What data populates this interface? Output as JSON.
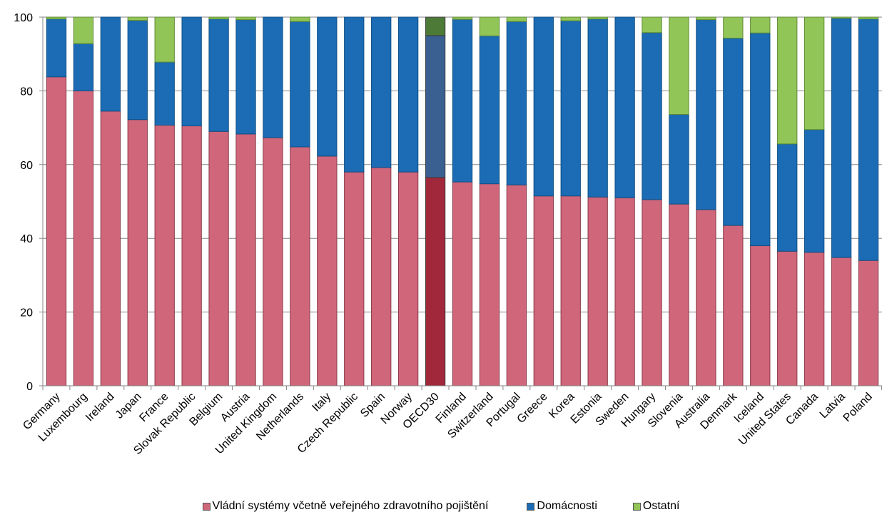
{
  "chart_data": {
    "type": "bar",
    "stacked": true,
    "highlight_category": "OECD30",
    "categories": [
      "Germany",
      "Luxembourg",
      "Ireland",
      "Japan",
      "France",
      "Slovak Republic",
      "Belgium",
      "Austria",
      "United Kingdom",
      "Netherlands",
      "Italy",
      "Czech Republic",
      "Spain",
      "Norway",
      "OECD30",
      "Finland",
      "Switzerland",
      "Portugal",
      "Greece",
      "Korea",
      "Estonia",
      "Sweden",
      "Hungary",
      "Slovenia",
      "Australia",
      "Denmark",
      "Iceland",
      "United States",
      "Canada",
      "Latvia",
      "Poland"
    ],
    "series": [
      {
        "name": "Vládní systémy včetně veřejného zdravotního pojištění",
        "color": "#d0667a",
        "highlight_color": "#a0283a",
        "values": [
          83.8,
          80.0,
          74.5,
          72.2,
          70.7,
          70.5,
          69.0,
          68.3,
          67.3,
          64.8,
          62.3,
          58.0,
          59.2,
          58.0,
          56.5,
          55.3,
          54.8,
          54.5,
          51.5,
          51.5,
          51.2,
          51.0,
          50.5,
          49.3,
          47.8,
          43.5,
          38.0,
          36.5,
          36.2,
          34.8,
          34.0
        ]
      },
      {
        "name": "Domácnosti",
        "color": "#1b6cb4",
        "highlight_color": "#3a5f91",
        "values": [
          15.7,
          12.8,
          25.5,
          26.9,
          17.1,
          29.5,
          30.5,
          31.0,
          32.7,
          34.0,
          37.7,
          42.0,
          40.8,
          42.0,
          38.5,
          44.1,
          40.1,
          44.3,
          48.5,
          47.5,
          48.3,
          49.0,
          45.3,
          24.3,
          51.5,
          50.8,
          57.7,
          29.1,
          33.3,
          64.9,
          65.5
        ]
      },
      {
        "name": "Ostatní",
        "color": "#92c557",
        "highlight_color": "#4e7a37",
        "values": [
          0.5,
          7.2,
          0.0,
          0.9,
          12.2,
          0.0,
          0.5,
          0.7,
          0.0,
          1.2,
          0.0,
          0.0,
          0.0,
          0.0,
          5.0,
          0.6,
          5.1,
          1.2,
          0.0,
          1.0,
          0.5,
          0.0,
          4.2,
          26.4,
          0.7,
          5.7,
          4.3,
          34.4,
          30.5,
          0.3,
          0.5
        ]
      }
    ],
    "y_ticks": [
      "0",
      "20",
      "40",
      "60",
      "80",
      "100"
    ],
    "ylim": [
      0,
      100
    ],
    "legend_position": "bottom",
    "grid": true,
    "xlabel": "",
    "ylabel": ""
  }
}
